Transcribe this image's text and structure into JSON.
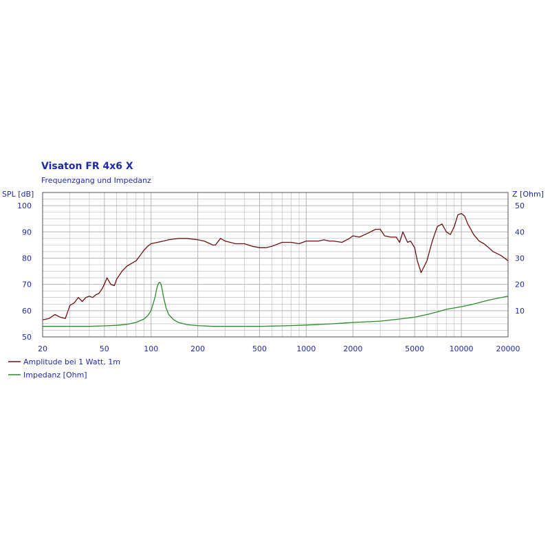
{
  "chart_data": {
    "type": "line",
    "title": "Visaton FR 4x6 X",
    "subtitle": "Frequenzgang und Impedanz",
    "xscale": "log",
    "xlim": [
      20,
      20000
    ],
    "x_ticks": [
      20,
      50,
      100,
      200,
      500,
      1000,
      2000,
      5000,
      10000,
      20000
    ],
    "ylabel_left": "SPL [dB]",
    "ylim_left": [
      50,
      105
    ],
    "y_ticks_left": [
      50,
      60,
      70,
      80,
      90,
      100
    ],
    "ylabel_right": "Z [Ohm]",
    "ylim_right": [
      0,
      55
    ],
    "y_ticks_right": [
      10,
      20,
      30,
      40,
      50
    ],
    "grid": true,
    "legend_position": "bottom-left",
    "colors": {
      "spl": "#6b0f0f",
      "impedance": "#2a8a2a",
      "text": "#1e2aa8",
      "grid": "#b4b4b4",
      "frame": "#505050"
    },
    "series": [
      {
        "name": "Amplitude bei 1 Watt, 1m",
        "axis": "left",
        "x": [
          20,
          22,
          24,
          26,
          28,
          30,
          32,
          34,
          36,
          38,
          40,
          42,
          44,
          46,
          48,
          50,
          52,
          55,
          58,
          60,
          65,
          70,
          75,
          80,
          85,
          90,
          95,
          100,
          110,
          120,
          130,
          150,
          170,
          200,
          220,
          240,
          250,
          260,
          280,
          300,
          350,
          400,
          450,
          500,
          550,
          600,
          700,
          800,
          900,
          1000,
          1100,
          1200,
          1300,
          1400,
          1500,
          1700,
          1900,
          2000,
          2200,
          2500,
          2800,
          3000,
          3200,
          3500,
          3800,
          4000,
          4200,
          4500,
          4700,
          5000,
          5200,
          5500,
          6000,
          6500,
          7000,
          7500,
          8000,
          8500,
          9000,
          9500,
          10000,
          10500,
          11000,
          11500,
          12000,
          13000,
          14000,
          15000,
          16000,
          18000,
          20000
        ],
        "y": [
          56.5,
          57,
          58.5,
          57.5,
          57,
          62,
          63,
          65,
          63.5,
          65,
          65.5,
          65,
          66,
          66.5,
          68,
          70,
          72.5,
          70,
          69.5,
          72,
          75,
          77,
          78,
          79,
          81,
          83,
          84.5,
          85.5,
          86,
          86.5,
          87,
          87.5,
          87.5,
          87,
          86.5,
          85.5,
          85,
          85,
          87.5,
          86.5,
          85.5,
          85.5,
          84.5,
          84,
          84,
          84.5,
          86,
          86,
          85.5,
          86.5,
          86.5,
          86.5,
          87,
          86.5,
          86.5,
          86,
          87.5,
          88.5,
          88,
          89.5,
          91,
          91,
          88.5,
          88,
          88,
          86,
          90,
          86,
          86.5,
          84,
          79,
          74.5,
          79,
          86.5,
          92,
          93,
          90,
          89,
          92,
          96.5,
          97,
          96,
          93,
          91,
          89,
          86.5,
          85.5,
          84,
          82.5,
          81,
          79
        ]
      },
      {
        "name": "Impedanz [Ohm]",
        "axis": "right",
        "x": [
          20,
          30,
          40,
          50,
          60,
          70,
          80,
          90,
          95,
          100,
          103,
          106,
          108,
          110,
          112,
          114,
          116,
          118,
          120,
          125,
          130,
          140,
          150,
          170,
          200,
          250,
          300,
          400,
          500,
          600,
          800,
          1000,
          1500,
          2000,
          3000,
          4000,
          5000,
          6000,
          7000,
          8000,
          10000,
          12000,
          15000,
          20000
        ],
        "y": [
          4,
          4,
          4,
          4.2,
          4.4,
          4.8,
          5.5,
          6.8,
          8,
          10,
          12.5,
          15,
          17.5,
          19.5,
          20.5,
          20.8,
          20,
          18,
          15.5,
          11,
          8.5,
          6.5,
          5.5,
          4.7,
          4.3,
          4,
          4,
          4,
          4,
          4.1,
          4.3,
          4.5,
          5,
          5.5,
          6,
          6.8,
          7.5,
          8.5,
          9.5,
          10.5,
          11.5,
          12.5,
          14,
          15.5
        ]
      }
    ]
  }
}
